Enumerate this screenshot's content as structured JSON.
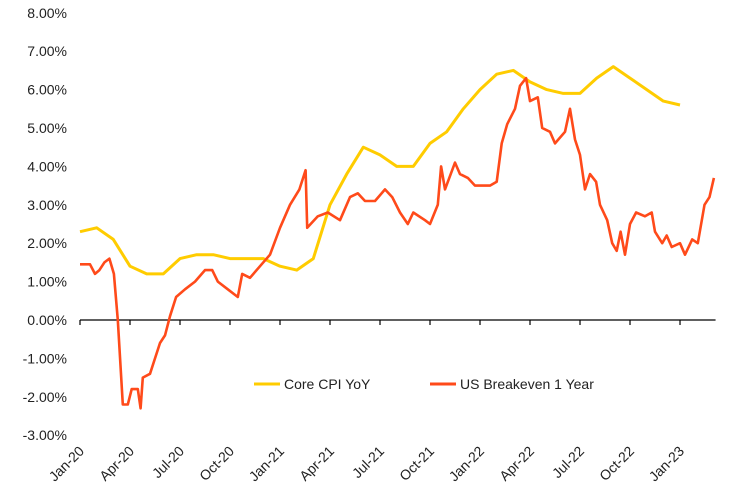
{
  "chart_data": {
    "type": "line",
    "title": "",
    "xlabel": "",
    "ylabel": "",
    "ylim": [
      -3,
      8
    ],
    "y_ticks": [
      "8.00%",
      "7.00%",
      "6.00%",
      "5.00%",
      "4.00%",
      "3.00%",
      "2.00%",
      "1.00%",
      "0.00%",
      "-1.00%",
      "-2.00%",
      "-3.00%"
    ],
    "y_tick_values": [
      8,
      7,
      6,
      5,
      4,
      3,
      2,
      1,
      0,
      -1,
      -2,
      -3
    ],
    "x_ticks": [
      "Jan-20",
      "Apr-20",
      "Jul-20",
      "Oct-20",
      "Jan-21",
      "Apr-21",
      "Jul-21",
      "Oct-21",
      "Jan-22",
      "Apr-22",
      "Jul-22",
      "Oct-22",
      "Jan-23"
    ],
    "x_tick_dates": [
      "2020-01-01",
      "2020-04-01",
      "2020-07-01",
      "2020-10-01",
      "2021-01-01",
      "2021-04-01",
      "2021-07-01",
      "2021-10-01",
      "2022-01-01",
      "2022-04-01",
      "2022-07-01",
      "2022-10-01",
      "2023-01-01"
    ],
    "xlim": [
      "2020-01-01",
      "2023-03-05"
    ],
    "grid": false,
    "legend_placement": "bottom-center",
    "series": [
      {
        "name": "Core CPI YoY",
        "color": "#FFCC00",
        "x": [
          "2020-01-01",
          "2020-02-01",
          "2020-03-01",
          "2020-04-01",
          "2020-05-01",
          "2020-06-01",
          "2020-07-01",
          "2020-08-01",
          "2020-09-01",
          "2020-10-01",
          "2020-11-01",
          "2020-12-01",
          "2021-01-01",
          "2021-02-01",
          "2021-03-01",
          "2021-04-01",
          "2021-05-01",
          "2021-06-01",
          "2021-07-01",
          "2021-08-01",
          "2021-09-01",
          "2021-10-01",
          "2021-11-01",
          "2021-12-01",
          "2022-01-01",
          "2022-02-01",
          "2022-03-01",
          "2022-04-01",
          "2022-05-01",
          "2022-06-01",
          "2022-07-01",
          "2022-08-01",
          "2022-09-01",
          "2022-10-01",
          "2022-11-01",
          "2022-12-01",
          "2023-01-01"
        ],
        "values": [
          2.3,
          2.4,
          2.1,
          1.4,
          1.2,
          1.2,
          1.6,
          1.7,
          1.7,
          1.6,
          1.6,
          1.6,
          1.4,
          1.3,
          1.6,
          3.0,
          3.8,
          4.5,
          4.3,
          4.0,
          4.0,
          4.6,
          4.9,
          5.5,
          6.0,
          6.4,
          6.5,
          6.2,
          6.0,
          5.9,
          5.9,
          6.3,
          6.6,
          6.3,
          6.0,
          5.7,
          5.6
        ]
      },
      {
        "name": "US Breakeven 1 Year",
        "color": "#FF4A1A",
        "x": [
          "2020-01-01",
          "2020-01-19",
          "2020-01-28",
          "2020-02-06",
          "2020-02-15",
          "2020-02-24",
          "2020-03-02",
          "2020-03-09",
          "2020-03-18",
          "2020-03-27",
          "2020-04-04",
          "2020-04-15",
          "2020-04-20",
          "2020-04-24",
          "2020-05-07",
          "2020-05-16",
          "2020-05-25",
          "2020-06-04",
          "2020-06-13",
          "2020-06-24",
          "2020-07-10",
          "2020-07-28",
          "2020-08-16",
          "2020-08-29",
          "2020-09-09",
          "2020-09-27",
          "2020-10-15",
          "2020-10-23",
          "2020-11-07",
          "2020-11-25",
          "2020-12-13",
          "2021-01-01",
          "2021-01-19",
          "2021-02-06",
          "2021-02-17",
          "2021-02-20",
          "2021-03-09",
          "2021-03-27",
          "2021-04-19",
          "2021-05-07",
          "2021-05-21",
          "2021-06-04",
          "2021-06-22",
          "2021-07-10",
          "2021-07-23",
          "2021-08-07",
          "2021-08-21",
          "2021-08-31",
          "2021-09-22",
          "2021-10-01",
          "2021-10-15",
          "2021-10-21",
          "2021-10-28",
          "2021-11-16",
          "2021-11-25",
          "2021-12-09",
          "2021-12-22",
          "2022-01-19",
          "2022-02-01",
          "2022-02-10",
          "2022-02-20",
          "2022-03-04",
          "2022-03-13",
          "2022-03-24",
          "2022-04-01",
          "2022-04-15",
          "2022-04-23",
          "2022-05-07",
          "2022-05-16",
          "2022-06-04",
          "2022-06-13",
          "2022-06-22",
          "2022-07-01",
          "2022-07-10",
          "2022-07-19",
          "2022-07-30",
          "2022-08-07",
          "2022-08-20",
          "2022-08-29",
          "2022-09-07",
          "2022-09-14",
          "2022-09-22",
          "2022-10-01",
          "2022-10-12",
          "2022-10-28",
          "2022-11-10",
          "2022-11-16",
          "2022-11-29",
          "2022-12-07",
          "2022-12-16",
          "2023-01-01",
          "2023-01-10",
          "2023-01-23",
          "2023-02-03",
          "2023-02-15",
          "2023-02-24",
          "2023-03-02"
        ],
        "values": [
          1.45,
          1.45,
          1.2,
          1.3,
          1.5,
          1.6,
          1.2,
          0.0,
          -2.2,
          -2.2,
          -1.8,
          -1.8,
          -2.3,
          -1.5,
          -1.4,
          -1.0,
          -0.6,
          -0.4,
          0.1,
          0.6,
          0.8,
          1.0,
          1.3,
          1.3,
          1.0,
          0.8,
          0.6,
          1.2,
          1.1,
          1.4,
          1.7,
          2.4,
          3.0,
          3.4,
          3.9,
          2.4,
          2.7,
          2.8,
          2.6,
          3.2,
          3.3,
          3.1,
          3.1,
          3.4,
          3.2,
          2.8,
          2.5,
          2.8,
          2.6,
          2.5,
          3.0,
          4.0,
          3.4,
          4.1,
          3.8,
          3.7,
          3.5,
          3.5,
          3.6,
          4.6,
          5.1,
          5.5,
          6.1,
          6.3,
          5.7,
          5.8,
          5.0,
          4.9,
          4.6,
          4.9,
          5.5,
          4.7,
          4.3,
          3.4,
          3.8,
          3.6,
          3.0,
          2.6,
          2.0,
          1.8,
          2.3,
          1.7,
          2.5,
          2.8,
          2.7,
          2.8,
          2.3,
          2.0,
          2.2,
          1.9,
          2.0,
          1.7,
          2.1,
          2.0,
          3.0,
          3.2,
          3.7
        ]
      }
    ]
  }
}
